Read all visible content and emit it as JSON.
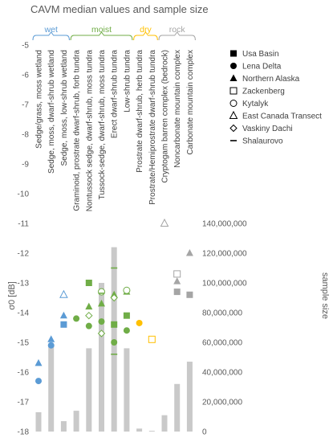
{
  "chart_data": {
    "type": "scatter",
    "title": "CAVM median values and sample size",
    "ylabel": "σ0 [dB]",
    "y2label": "sample size",
    "ylim": [
      -18,
      -5
    ],
    "y2lim": [
      0,
      140000000
    ],
    "yticks": [
      "-5",
      "-6",
      "-7",
      "-8",
      "-9",
      "-10",
      "-11",
      "-12",
      "-13",
      "-14",
      "-15",
      "-16",
      "-17",
      "-18"
    ],
    "y2ticks": [
      "0",
      "20,000,000",
      "40,000,000",
      "60,000,000",
      "80,000,000",
      "100,000,000",
      "120,000,000",
      "140,000,000"
    ],
    "groups": [
      {
        "name": "wet",
        "color": "#5B9BD5",
        "start": 0,
        "end": 2
      },
      {
        "name": "moist",
        "color": "#70AD47",
        "start": 3,
        "end": 7
      },
      {
        "name": "dry",
        "color": "#FFC000",
        "start": 8,
        "end": 9
      },
      {
        "name": "rock",
        "color": "#A5A5A5",
        "start": 10,
        "end": 12
      }
    ],
    "categories": [
      "Sedge/grass, moss wetland",
      "Sedge, moss, dwarf-shrub wetland",
      "Sedge, moss, low-shrub wetland",
      "Graminoid, prostrate dwarf-shrub, forb tundra",
      "Nontussock sedge, dwarf-shrub, moss tundra",
      "Tussock-sedge, dwarf-shrub, moss tundra",
      "Erect dwarf-shrub tundra",
      "Low-shrub tundra",
      "Prostrate dwarf-shrub, herb tundra",
      "Prostrate/Hemiprostrate dwarf-shrub tundra",
      "Cryptogam barren complex (bedrock)",
      "Noncarbonate mountain complex",
      "Carbonate mountain complex"
    ],
    "sample_size": [
      13000000,
      58000000,
      7000000,
      14000000,
      56000000,
      100000000,
      124000000,
      56000000,
      2000000,
      500000,
      11000000,
      32000000,
      47000000
    ],
    "legend": [
      {
        "name": "Usa Basin",
        "marker": "square-filled"
      },
      {
        "name": "Lena Delta",
        "marker": "circle-filled"
      },
      {
        "name": "Northern Alaska",
        "marker": "triangle-filled"
      },
      {
        "name": "Zackenberg",
        "marker": "square-open"
      },
      {
        "name": "Kytalyk",
        "marker": "circle-open"
      },
      {
        "name": "East Canada Transect",
        "marker": "triangle-open"
      },
      {
        "name": "Vaskiny Dachi",
        "marker": "diamond-open"
      },
      {
        "name": "Shalaurovo",
        "marker": "dash"
      }
    ],
    "series": [
      {
        "name": "Usa Basin",
        "marker": "square-filled",
        "points": [
          [
            2,
            -14.4
          ],
          [
            4,
            -13.0
          ],
          [
            6,
            -14.4
          ],
          [
            7,
            -14.1
          ],
          [
            11,
            -13.3
          ],
          [
            12,
            -13.4
          ]
        ]
      },
      {
        "name": "Lena Delta",
        "marker": "circle-filled",
        "points": [
          [
            0,
            -16.3
          ],
          [
            1,
            -15.1
          ],
          [
            3,
            -14.2
          ],
          [
            4,
            -14.45
          ],
          [
            5,
            -14.3
          ],
          [
            6,
            -15.0
          ],
          [
            7,
            -14.6
          ],
          [
            8,
            -14.35
          ]
        ]
      },
      {
        "name": "Northern Alaska",
        "marker": "triangle-filled",
        "points": [
          [
            0,
            -15.7
          ],
          [
            1,
            -14.9
          ],
          [
            2,
            -14.1
          ],
          [
            4,
            -13.8
          ],
          [
            5,
            -13.7
          ],
          [
            6,
            -13.4
          ],
          [
            7,
            -13.3
          ],
          [
            11,
            -12.95
          ],
          [
            12,
            -12.0
          ]
        ]
      },
      {
        "name": "Zackenberg",
        "marker": "square-open",
        "points": [
          [
            9,
            -14.9
          ],
          [
            11,
            -12.7
          ]
        ]
      },
      {
        "name": "Kytalyk",
        "marker": "circle-open",
        "points": [
          [
            5,
            -13.3
          ],
          [
            7,
            -13.25
          ]
        ]
      },
      {
        "name": "East Canada Transect",
        "marker": "triangle-open",
        "points": [
          [
            2,
            -13.4
          ],
          [
            10,
            -11.0
          ]
        ]
      },
      {
        "name": "Vaskiny Dachi",
        "marker": "diamond-open",
        "points": [
          [
            4,
            -14.1
          ],
          [
            5,
            -14.7
          ],
          [
            6,
            -13.5
          ]
        ]
      },
      {
        "name": "Shalaurovo",
        "marker": "dash",
        "points": [
          [
            5,
            -13.35
          ],
          [
            6,
            -12.5
          ],
          [
            6,
            -15.4
          ]
        ]
      }
    ]
  }
}
